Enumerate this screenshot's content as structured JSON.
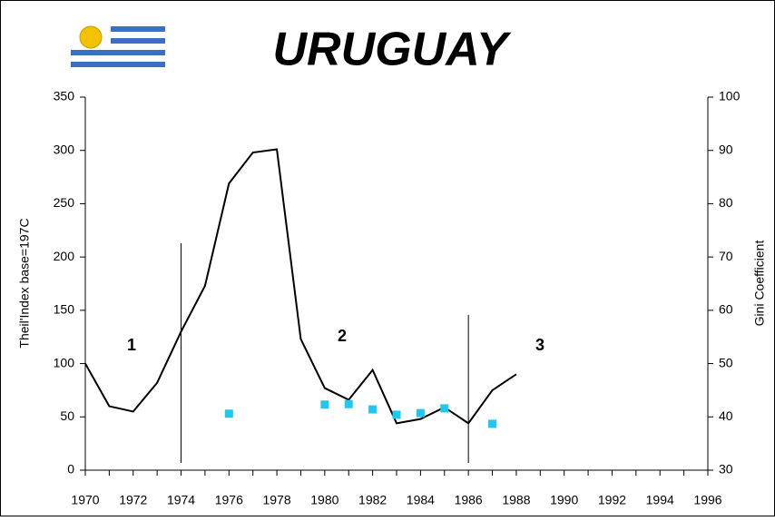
{
  "chart_data": {
    "type": "line",
    "title": "URUGUAY",
    "y_label": "Theil'Index base=197C",
    "y2_label": "Gini Coefficient",
    "xlim": [
      1970,
      1996
    ],
    "xticks": [
      1970,
      1972,
      1974,
      1976,
      1978,
      1980,
      1982,
      1984,
      1986,
      1988,
      1990,
      1992,
      1994,
      1996
    ],
    "ylim": [
      0,
      350
    ],
    "yticks": [
      0,
      50,
      100,
      150,
      200,
      250,
      300,
      350
    ],
    "y2lim": [
      30,
      100
    ],
    "y2ticks": [
      30,
      40,
      50,
      60,
      70,
      80,
      90,
      100
    ],
    "phase_dividers": [
      1974,
      1986
    ],
    "annotations": [
      "1",
      "2",
      "3"
    ],
    "series": [
      {
        "type": "line",
        "color": "#000000",
        "x": [
          1970,
          1971,
          1972,
          1973,
          1974,
          1975,
          1976,
          1977,
          1978,
          1979,
          1980,
          1981,
          1982,
          1983,
          1984,
          1985,
          1986,
          1987,
          1988
        ],
        "values": [
          100,
          60,
          55,
          82,
          130,
          173,
          269,
          298,
          301,
          123,
          77,
          66,
          94,
          44,
          48,
          59,
          44,
          75,
          90
        ]
      },
      {
        "type": "scatter",
        "axis": "y2",
        "color": "#1ec8f0",
        "x": [
          1976,
          1980,
          1981,
          1982,
          1983,
          1984,
          1985,
          1987
        ],
        "values": [
          40.6,
          42.3,
          42.4,
          41.4,
          40.4,
          40.7,
          41.6,
          38.7
        ]
      }
    ]
  }
}
